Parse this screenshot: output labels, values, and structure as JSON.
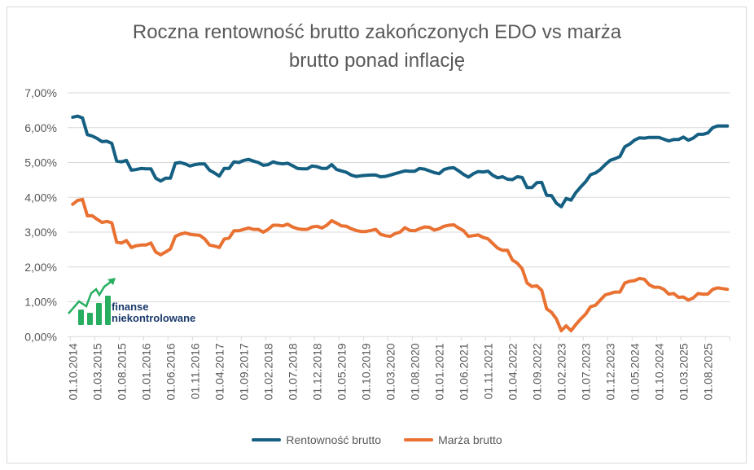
{
  "chart_data": {
    "type": "line",
    "title": "Roczna rentowność brutto zakończonych EDO vs marża brutto ponad inflację",
    "title_lines": [
      "Roczna rentowność brutto zakończonych EDO vs marża",
      "brutto ponad inflację"
    ],
    "xlabel": "",
    "ylabel": "",
    "ylim": [
      0,
      7
    ],
    "y_ticks": [
      "0,00%",
      "1,00%",
      "2,00%",
      "3,00%",
      "4,00%",
      "5,00%",
      "6,00%",
      "7,00%"
    ],
    "grid": true,
    "legend_placement": "bottom",
    "x_tick_every": 5,
    "x": [
      "01.10.2014",
      "01.11.2014",
      "01.12.2014",
      "01.01.2015",
      "01.02.2015",
      "01.03.2015",
      "01.04.2015",
      "01.05.2015",
      "01.06.2015",
      "01.07.2015",
      "01.08.2015",
      "01.09.2015",
      "01.10.2015",
      "01.11.2015",
      "01.12.2015",
      "01.01.2016",
      "01.02.2016",
      "01.03.2016",
      "01.04.2016",
      "01.05.2016",
      "01.06.2016",
      "01.07.2016",
      "01.08.2016",
      "01.09.2016",
      "01.10.2016",
      "01.11.2016",
      "01.12.2016",
      "01.01.2017",
      "01.02.2017",
      "01.03.2017",
      "01.04.2017",
      "01.05.2017",
      "01.06.2017",
      "01.07.2017",
      "01.08.2017",
      "01.09.2017",
      "01.10.2017",
      "01.11.2017",
      "01.12.2017",
      "01.01.2018",
      "01.02.2018",
      "01.03.2018",
      "01.04.2018",
      "01.05.2018",
      "01.06.2018",
      "01.07.2018",
      "01.08.2018",
      "01.09.2018",
      "01.10.2018",
      "01.11.2018",
      "01.12.2018",
      "01.01.2019",
      "01.02.2019",
      "01.03.2019",
      "01.04.2019",
      "01.05.2019",
      "01.06.2019",
      "01.07.2019",
      "01.08.2019",
      "01.09.2019",
      "01.10.2019",
      "01.11.2019",
      "01.12.2019",
      "01.01.2020",
      "01.02.2020",
      "01.03.2020",
      "01.04.2020",
      "01.05.2020",
      "01.06.2020",
      "01.07.2020",
      "01.08.2020",
      "01.09.2020",
      "01.10.2020",
      "01.11.2020",
      "01.12.2020",
      "01.01.2021",
      "01.02.2021",
      "01.03.2021",
      "01.04.2021",
      "01.05.2021",
      "01.06.2021",
      "01.07.2021",
      "01.08.2021",
      "01.09.2021",
      "01.10.2021",
      "01.11.2021",
      "01.12.2021",
      "01.01.2022",
      "01.02.2022",
      "01.03.2022",
      "01.04.2022",
      "01.05.2022",
      "01.06.2022",
      "01.07.2022",
      "01.08.2022",
      "01.09.2022",
      "01.10.2022",
      "01.11.2022",
      "01.12.2022",
      "01.01.2023",
      "01.02.2023",
      "01.03.2023",
      "01.04.2023",
      "01.05.2023",
      "01.06.2023",
      "01.07.2023",
      "01.08.2023",
      "01.09.2023",
      "01.10.2023",
      "01.11.2023",
      "01.12.2023",
      "01.01.2024",
      "01.02.2024",
      "01.03.2024",
      "01.04.2024",
      "01.05.2024",
      "01.06.2024",
      "01.07.2024",
      "01.08.2024",
      "01.09.2024",
      "01.10.2024",
      "01.11.2024",
      "01.12.2024",
      "01.01.2025",
      "01.02.2025",
      "01.03.2025",
      "01.04.2025",
      "01.05.2025",
      "01.06.2025",
      "01.07.2025",
      "01.08.2025",
      "01.09.2025",
      "01.10.2025",
      "01.11.2025",
      "01.12.2025"
    ],
    "series": [
      {
        "name": "Rentowność brutto",
        "color": "#156082",
        "values": [
          6.3,
          6.33,
          6.28,
          5.8,
          5.76,
          5.69,
          5.6,
          5.61,
          5.55,
          5.04,
          5.02,
          5.06,
          4.78,
          4.8,
          4.83,
          4.82,
          4.82,
          4.55,
          4.47,
          4.55,
          4.55,
          4.98,
          5.0,
          4.96,
          4.9,
          4.94,
          4.96,
          4.96,
          4.78,
          4.7,
          4.61,
          4.83,
          4.83,
          5.02,
          5.0,
          5.06,
          5.09,
          5.04,
          5.0,
          4.92,
          4.94,
          5.02,
          4.98,
          4.96,
          4.98,
          4.91,
          4.83,
          4.82,
          4.82,
          4.9,
          4.88,
          4.83,
          4.83,
          4.94,
          4.8,
          4.76,
          4.72,
          4.64,
          4.6,
          4.62,
          4.63,
          4.64,
          4.64,
          4.59,
          4.6,
          4.64,
          4.68,
          4.72,
          4.76,
          4.75,
          4.75,
          4.83,
          4.81,
          4.76,
          4.71,
          4.68,
          4.8,
          4.84,
          4.85,
          4.76,
          4.66,
          4.58,
          4.68,
          4.74,
          4.73,
          4.75,
          4.63,
          4.56,
          4.59,
          4.52,
          4.51,
          4.59,
          4.57,
          4.28,
          4.28,
          4.42,
          4.43,
          4.06,
          4.05,
          3.83,
          3.73,
          3.97,
          3.92,
          4.14,
          4.3,
          4.45,
          4.65,
          4.7,
          4.8,
          4.94,
          5.06,
          5.11,
          5.17,
          5.45,
          5.53,
          5.64,
          5.71,
          5.7,
          5.72,
          5.72,
          5.72,
          5.67,
          5.62,
          5.66,
          5.66,
          5.73,
          5.64,
          5.7,
          5.81,
          5.81,
          5.85,
          6.0,
          6.05,
          6.05,
          6.05
        ]
      },
      {
        "name": "Marża brutto",
        "color": "#E97132",
        "values": [
          3.8,
          3.91,
          3.94,
          3.47,
          3.47,
          3.37,
          3.28,
          3.31,
          3.27,
          2.71,
          2.69,
          2.76,
          2.56,
          2.61,
          2.63,
          2.63,
          2.69,
          2.43,
          2.35,
          2.43,
          2.52,
          2.88,
          2.94,
          2.98,
          2.94,
          2.92,
          2.91,
          2.81,
          2.63,
          2.6,
          2.56,
          2.8,
          2.83,
          3.04,
          3.04,
          3.08,
          3.12,
          3.08,
          3.08,
          3.0,
          3.08,
          3.2,
          3.2,
          3.18,
          3.23,
          3.15,
          3.1,
          3.08,
          3.08,
          3.15,
          3.17,
          3.12,
          3.2,
          3.33,
          3.26,
          3.18,
          3.17,
          3.1,
          3.05,
          3.02,
          3.02,
          3.05,
          3.08,
          2.94,
          2.9,
          2.88,
          2.96,
          3.0,
          3.13,
          3.05,
          3.04,
          3.1,
          3.15,
          3.14,
          3.06,
          3.1,
          3.17,
          3.2,
          3.21,
          3.12,
          3.04,
          2.88,
          2.9,
          2.92,
          2.85,
          2.81,
          2.67,
          2.54,
          2.48,
          2.48,
          2.2,
          2.11,
          1.95,
          1.54,
          1.44,
          1.46,
          1.33,
          0.8,
          0.7,
          0.51,
          0.17,
          0.31,
          0.17,
          0.35,
          0.51,
          0.65,
          0.86,
          0.9,
          1.05,
          1.2,
          1.24,
          1.28,
          1.28,
          1.54,
          1.59,
          1.61,
          1.67,
          1.65,
          1.49,
          1.42,
          1.42,
          1.36,
          1.22,
          1.24,
          1.13,
          1.14,
          1.05,
          1.11,
          1.24,
          1.22,
          1.22,
          1.36,
          1.4,
          1.38,
          1.36
        ]
      }
    ]
  },
  "logo": {
    "line1": "finanse",
    "line2": "niekontrolowane",
    "color": "#27ae60"
  }
}
